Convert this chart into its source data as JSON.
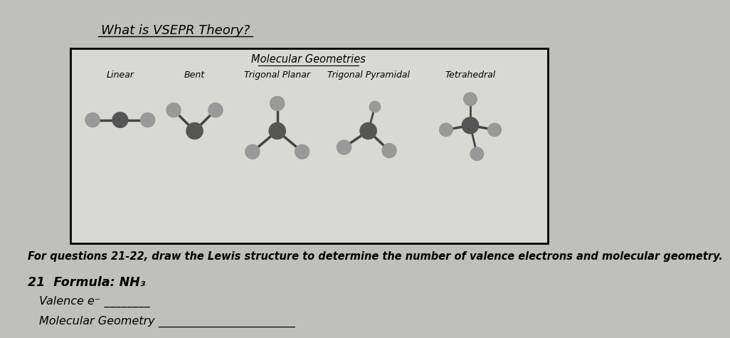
{
  "title": "What is VSEPR Theory?",
  "box_title": "Molecular Geometries",
  "column_labels": [
    "Linear",
    "Bent",
    "Trigonal Planar",
    "Trigonal Pyramidal",
    "Tetrahedral"
  ],
  "question_text": "For questions 21-22, draw the Lewis structure to determine the number of valence electrons and molecular geometry.",
  "q21_label": "21  Formula: NH₃",
  "valence_label": "Valence e⁻ ________",
  "geometry_label": "Molecular Geometry ________________________",
  "bg_color": "#bfc0bb",
  "box_bg": "#d8d9d4",
  "atom_color_dark": "#555555",
  "atom_color_light": "#999999",
  "bond_color": "#444444",
  "col_positions": [
    2.05,
    3.4,
    4.9,
    6.55,
    8.4
  ]
}
